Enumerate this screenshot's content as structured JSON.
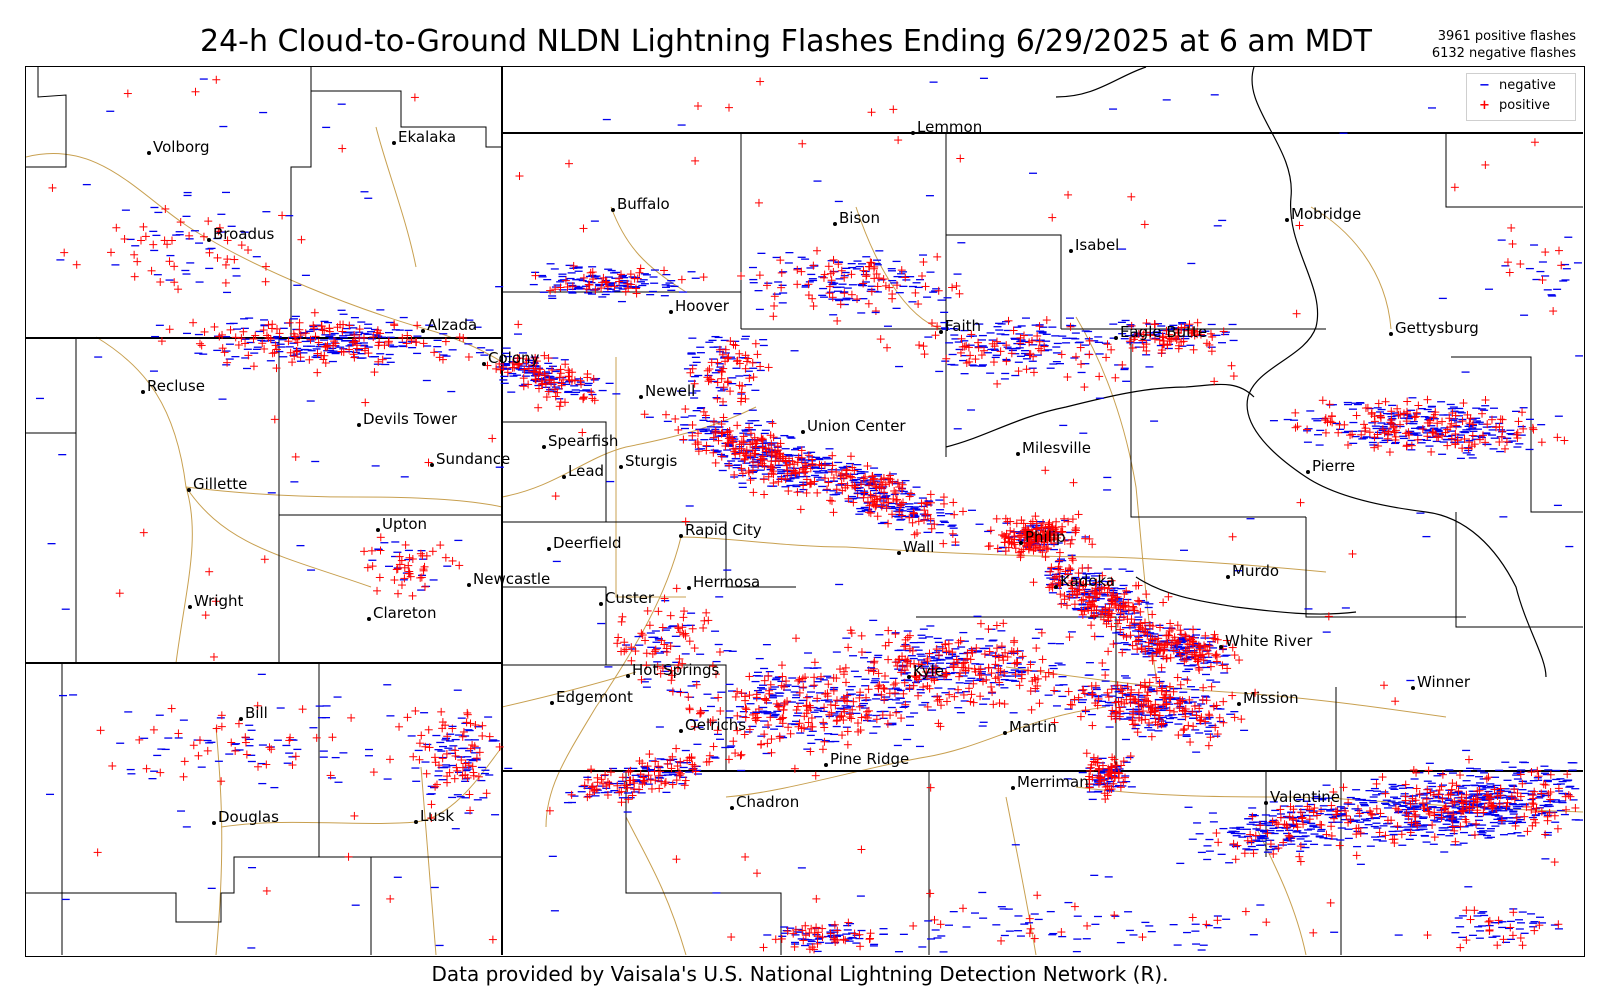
{
  "title": "24-h Cloud-to-Ground NLDN Lightning Flashes Ending 6/29/2025 at 6 am MDT",
  "counts": {
    "positive": "3961 positive flashes",
    "negative": "6132 negative flashes"
  },
  "legend": {
    "negative_label": "negative",
    "positive_label": "positive",
    "negative_symbol": "−",
    "positive_symbol": "+"
  },
  "colors": {
    "negative": "#0000ee",
    "positive": "#ff0000",
    "roads": "#c8a050",
    "borders": "#000000"
  },
  "footer": "Data provided by Vaisala's U.S. National Lightning Detection Network (R).",
  "cities": [
    {
      "name": "Volborg"
    },
    {
      "name": "Ekalaka"
    },
    {
      "name": "Lemmon"
    },
    {
      "name": "Buffalo"
    },
    {
      "name": "Bison"
    },
    {
      "name": "Mobridge"
    },
    {
      "name": "Broadus"
    },
    {
      "name": "Isabel"
    },
    {
      "name": "Hoover"
    },
    {
      "name": "Alzada"
    },
    {
      "name": "Faith"
    },
    {
      "name": "Eagle Butte"
    },
    {
      "name": "Gettysburg"
    },
    {
      "name": "Colony"
    },
    {
      "name": "Recluse"
    },
    {
      "name": "Newell"
    },
    {
      "name": "Devils Tower"
    },
    {
      "name": "Union Center"
    },
    {
      "name": "Spearfish"
    },
    {
      "name": "Milesville"
    },
    {
      "name": "Sundance"
    },
    {
      "name": "Sturgis"
    },
    {
      "name": "Lead"
    },
    {
      "name": "Pierre"
    },
    {
      "name": "Gillette"
    },
    {
      "name": "Upton"
    },
    {
      "name": "Rapid City"
    },
    {
      "name": "Deerfield"
    },
    {
      "name": "Wall"
    },
    {
      "name": "Philip"
    },
    {
      "name": "Murdo"
    },
    {
      "name": "Newcastle"
    },
    {
      "name": "Hermosa"
    },
    {
      "name": "Kadoka"
    },
    {
      "name": "Custer"
    },
    {
      "name": "Wright"
    },
    {
      "name": "Clareton"
    },
    {
      "name": "White River"
    },
    {
      "name": "Hot Springs"
    },
    {
      "name": "Kyle"
    },
    {
      "name": "Winner"
    },
    {
      "name": "Bill"
    },
    {
      "name": "Edgemont"
    },
    {
      "name": "Mission"
    },
    {
      "name": "Oelrichs"
    },
    {
      "name": "Martin"
    },
    {
      "name": "Pine Ridge"
    },
    {
      "name": "Merriman"
    },
    {
      "name": "Chadron"
    },
    {
      "name": "Valentine"
    },
    {
      "name": "Douglas"
    },
    {
      "name": "Lusk"
    }
  ]
}
